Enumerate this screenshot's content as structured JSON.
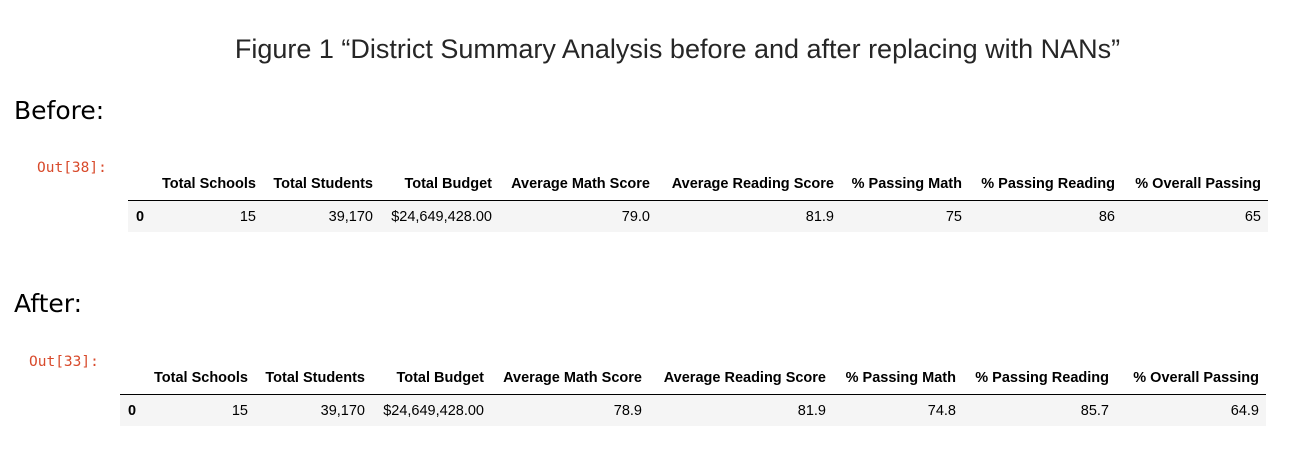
{
  "figure": {
    "title": "Figure 1 “District Summary Analysis before and after replacing with NANs”"
  },
  "before": {
    "label": "Before:",
    "prompt": "Out[38]:",
    "columns": [
      "Total Schools",
      "Total Students",
      "Total Budget",
      "Average Math Score",
      "Average Reading Score",
      "% Passing Math",
      "% Passing Reading",
      "% Overall Passing"
    ],
    "rows": [
      {
        "index": "0",
        "values": [
          "15",
          "39,170",
          "$24,649,428.00",
          "79.0",
          "81.9",
          "75",
          "86",
          "65"
        ]
      }
    ]
  },
  "after": {
    "label": "After:",
    "prompt": "Out[33]:",
    "columns": [
      "Total Schools",
      "Total Students",
      "Total Budget",
      "Average Math Score",
      "Average Reading Score",
      "% Passing Math",
      "% Passing Reading",
      "% Overall Passing"
    ],
    "rows": [
      {
        "index": "0",
        "values": [
          "15",
          "39,170",
          "$24,649,428.00",
          "78.9",
          "81.9",
          "74.8",
          "85.7",
          "64.9"
        ]
      }
    ]
  }
}
